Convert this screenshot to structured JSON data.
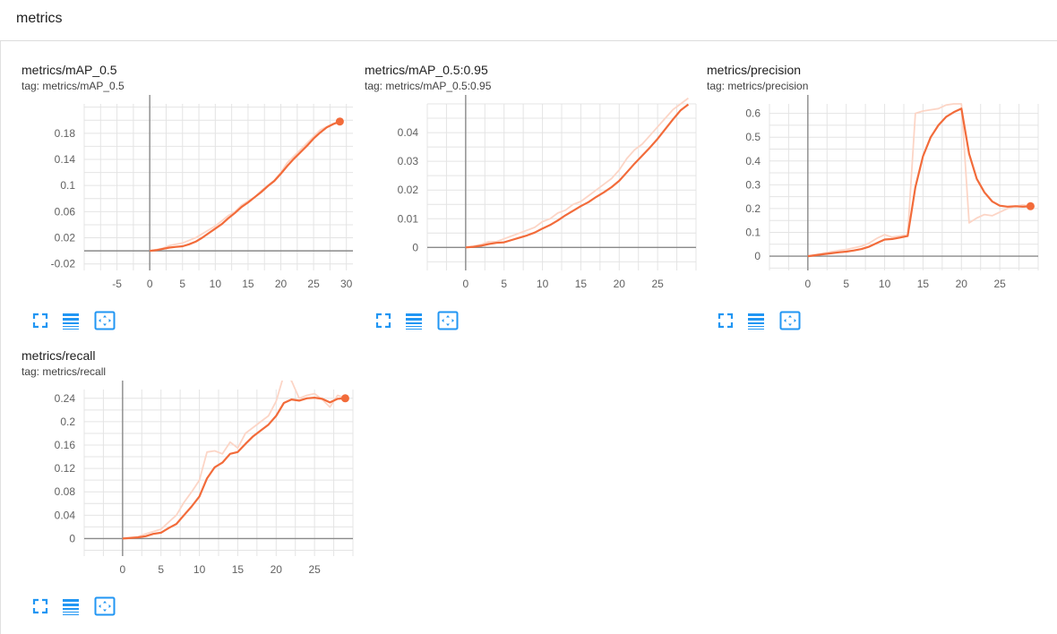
{
  "section": {
    "title": "metrics"
  },
  "cards": [
    {
      "title": "metrics/mAP_0.5",
      "tag": "tag: metrics/mAP_0.5"
    },
    {
      "title": "metrics/mAP_0.5:0.95",
      "tag": "tag: metrics/mAP_0.5:0.95"
    },
    {
      "title": "metrics/precision",
      "tag": "tag: metrics/precision"
    },
    {
      "title": "metrics/recall",
      "tag": "tag: metrics/recall"
    }
  ],
  "toolbar_icons": [
    "expand-icon",
    "log-scale-icon",
    "fit-domain-icon"
  ],
  "colors": {
    "smoothed": "#f26b3a",
    "raw": "#fcd5c6",
    "axis": "#8a8a8a",
    "grid": "#e4e4e4",
    "icon": "#2196f3"
  },
  "chart_data": [
    {
      "type": "line",
      "xlim": [
        -10,
        31
      ],
      "ylim": [
        -0.03,
        0.225
      ],
      "x_ticks": [
        -5,
        0,
        5,
        10,
        15,
        20,
        25,
        30
      ],
      "y_ticks": [
        -0.02,
        0.02,
        0.06,
        0.1,
        0.14,
        0.18
      ],
      "y_tick_labels": [
        "-0.02",
        "0.02",
        "0.06",
        "0.1",
        "0.14",
        "0.18"
      ],
      "x": [
        0,
        1,
        2,
        3,
        4,
        5,
        6,
        7,
        8,
        9,
        10,
        11,
        12,
        13,
        14,
        15,
        16,
        17,
        18,
        19,
        20,
        21,
        22,
        23,
        24,
        25,
        26,
        27,
        28,
        29
      ],
      "series": [
        {
          "values": [
            0,
            0.002,
            0.004,
            0.008,
            0.01,
            0.012,
            0.016,
            0.02,
            0.026,
            0.032,
            0.038,
            0.046,
            0.054,
            0.06,
            0.07,
            0.076,
            0.082,
            0.092,
            0.1,
            0.108,
            0.12,
            0.135,
            0.145,
            0.155,
            0.165,
            0.175,
            0.185,
            0.19,
            0.195,
            0.198
          ]
        },
        {
          "values": [
            0,
            0.001,
            0.003,
            0.005,
            0.006,
            0.007,
            0.01,
            0.014,
            0.02,
            0.027,
            0.034,
            0.041,
            0.05,
            0.058,
            0.067,
            0.074,
            0.082,
            0.09,
            0.099,
            0.107,
            0.118,
            0.13,
            0.141,
            0.151,
            0.161,
            0.172,
            0.181,
            0.189,
            0.194,
            0.198
          ]
        }
      ],
      "last_point": [
        29,
        0.198
      ]
    },
    {
      "type": "line",
      "xlim": [
        -5,
        30
      ],
      "ylim": [
        -0.008,
        0.05
      ],
      "x_ticks": [
        0,
        5,
        10,
        15,
        20,
        25
      ],
      "y_ticks": [
        0,
        0.01,
        0.02,
        0.03,
        0.04
      ],
      "y_tick_labels": [
        "0",
        "0.01",
        "0.02",
        "0.03",
        "0.04"
      ],
      "x": [
        0,
        1,
        2,
        3,
        4,
        5,
        6,
        7,
        8,
        9,
        10,
        11,
        12,
        13,
        14,
        15,
        16,
        17,
        18,
        19,
        20,
        21,
        22,
        23,
        24,
        25,
        26,
        27,
        28,
        29
      ],
      "series": [
        {
          "values": [
            0,
            0.0005,
            0.001,
            0.002,
            0.002,
            0.003,
            0.004,
            0.005,
            0.006,
            0.007,
            0.009,
            0.01,
            0.012,
            0.013,
            0.015,
            0.016,
            0.018,
            0.02,
            0.022,
            0.024,
            0.027,
            0.031,
            0.034,
            0.036,
            0.039,
            0.042,
            0.045,
            0.048,
            0.05,
            0.052
          ]
        },
        {
          "values": [
            0,
            0.0002,
            0.0006,
            0.0012,
            0.0016,
            0.0018,
            0.0026,
            0.0034,
            0.0042,
            0.0052,
            0.0066,
            0.0078,
            0.0094,
            0.0112,
            0.0128,
            0.0144,
            0.0158,
            0.0176,
            0.0192,
            0.021,
            0.0232,
            0.0262,
            0.0292,
            0.032,
            0.0348,
            0.0378,
            0.0412,
            0.0446,
            0.0478,
            0.0498
          ]
        }
      ]
    },
    {
      "type": "line",
      "xlim": [
        -5,
        30
      ],
      "ylim": [
        -0.06,
        0.64
      ],
      "x_ticks": [
        0,
        5,
        10,
        15,
        20,
        25
      ],
      "y_ticks": [
        0,
        0.1,
        0.2,
        0.3,
        0.4,
        0.5,
        0.6
      ],
      "y_tick_labels": [
        "0",
        "0.1",
        "0.2",
        "0.3",
        "0.4",
        "0.5",
        "0.6"
      ],
      "x": [
        0,
        1,
        2,
        3,
        4,
        5,
        6,
        7,
        8,
        9,
        10,
        11,
        12,
        13,
        14,
        15,
        16,
        17,
        18,
        19,
        20,
        21,
        22,
        23,
        24,
        25,
        26,
        27,
        28,
        29
      ],
      "series": [
        {
          "values": [
            0,
            0.006,
            0.012,
            0.018,
            0.024,
            0.028,
            0.035,
            0.042,
            0.055,
            0.075,
            0.09,
            0.08,
            0.085,
            0.09,
            0.6,
            0.61,
            0.615,
            0.62,
            0.635,
            0.64,
            0.64,
            0.14,
            0.16,
            0.175,
            0.17,
            0.185,
            0.2,
            0.21,
            0.215,
            0.21
          ]
        },
        {
          "values": [
            0,
            0.004,
            0.008,
            0.012,
            0.016,
            0.019,
            0.024,
            0.03,
            0.04,
            0.055,
            0.07,
            0.072,
            0.078,
            0.085,
            0.29,
            0.42,
            0.5,
            0.55,
            0.585,
            0.605,
            0.62,
            0.43,
            0.325,
            0.268,
            0.23,
            0.212,
            0.208,
            0.21,
            0.208,
            0.21
          ]
        }
      ],
      "last_point": [
        29,
        0.21
      ]
    },
    {
      "type": "line",
      "xlim": [
        -5,
        30
      ],
      "ylim": [
        -0.03,
        0.255
      ],
      "x_ticks": [
        0,
        5,
        10,
        15,
        20,
        25
      ],
      "y_ticks": [
        0,
        0.04,
        0.08,
        0.12,
        0.16,
        0.2,
        0.24
      ],
      "y_tick_labels": [
        "0",
        "0.04",
        "0.08",
        "0.12",
        "0.16",
        "0.2",
        "0.24"
      ],
      "x": [
        0,
        1,
        2,
        3,
        4,
        5,
        6,
        7,
        8,
        9,
        10,
        11,
        12,
        13,
        14,
        15,
        16,
        17,
        18,
        19,
        20,
        21,
        22,
        23,
        24,
        25,
        26,
        27,
        28,
        29
      ],
      "series": [
        {
          "values": [
            0,
            0.002,
            0.003,
            0.008,
            0.012,
            0.016,
            0.028,
            0.04,
            0.062,
            0.08,
            0.1,
            0.148,
            0.15,
            0.145,
            0.165,
            0.155,
            0.18,
            0.19,
            0.2,
            0.21,
            0.235,
            0.28,
            0.27,
            0.24,
            0.245,
            0.248,
            0.238,
            0.225,
            0.245,
            0.24
          ]
        },
        {
          "values": [
            0,
            0.001,
            0.002,
            0.004,
            0.008,
            0.01,
            0.018,
            0.025,
            0.04,
            0.055,
            0.072,
            0.103,
            0.122,
            0.13,
            0.145,
            0.148,
            0.162,
            0.175,
            0.185,
            0.195,
            0.21,
            0.232,
            0.238,
            0.236,
            0.24,
            0.241,
            0.239,
            0.233,
            0.239,
            0.24
          ]
        }
      ],
      "last_point": [
        29,
        0.24
      ]
    }
  ]
}
